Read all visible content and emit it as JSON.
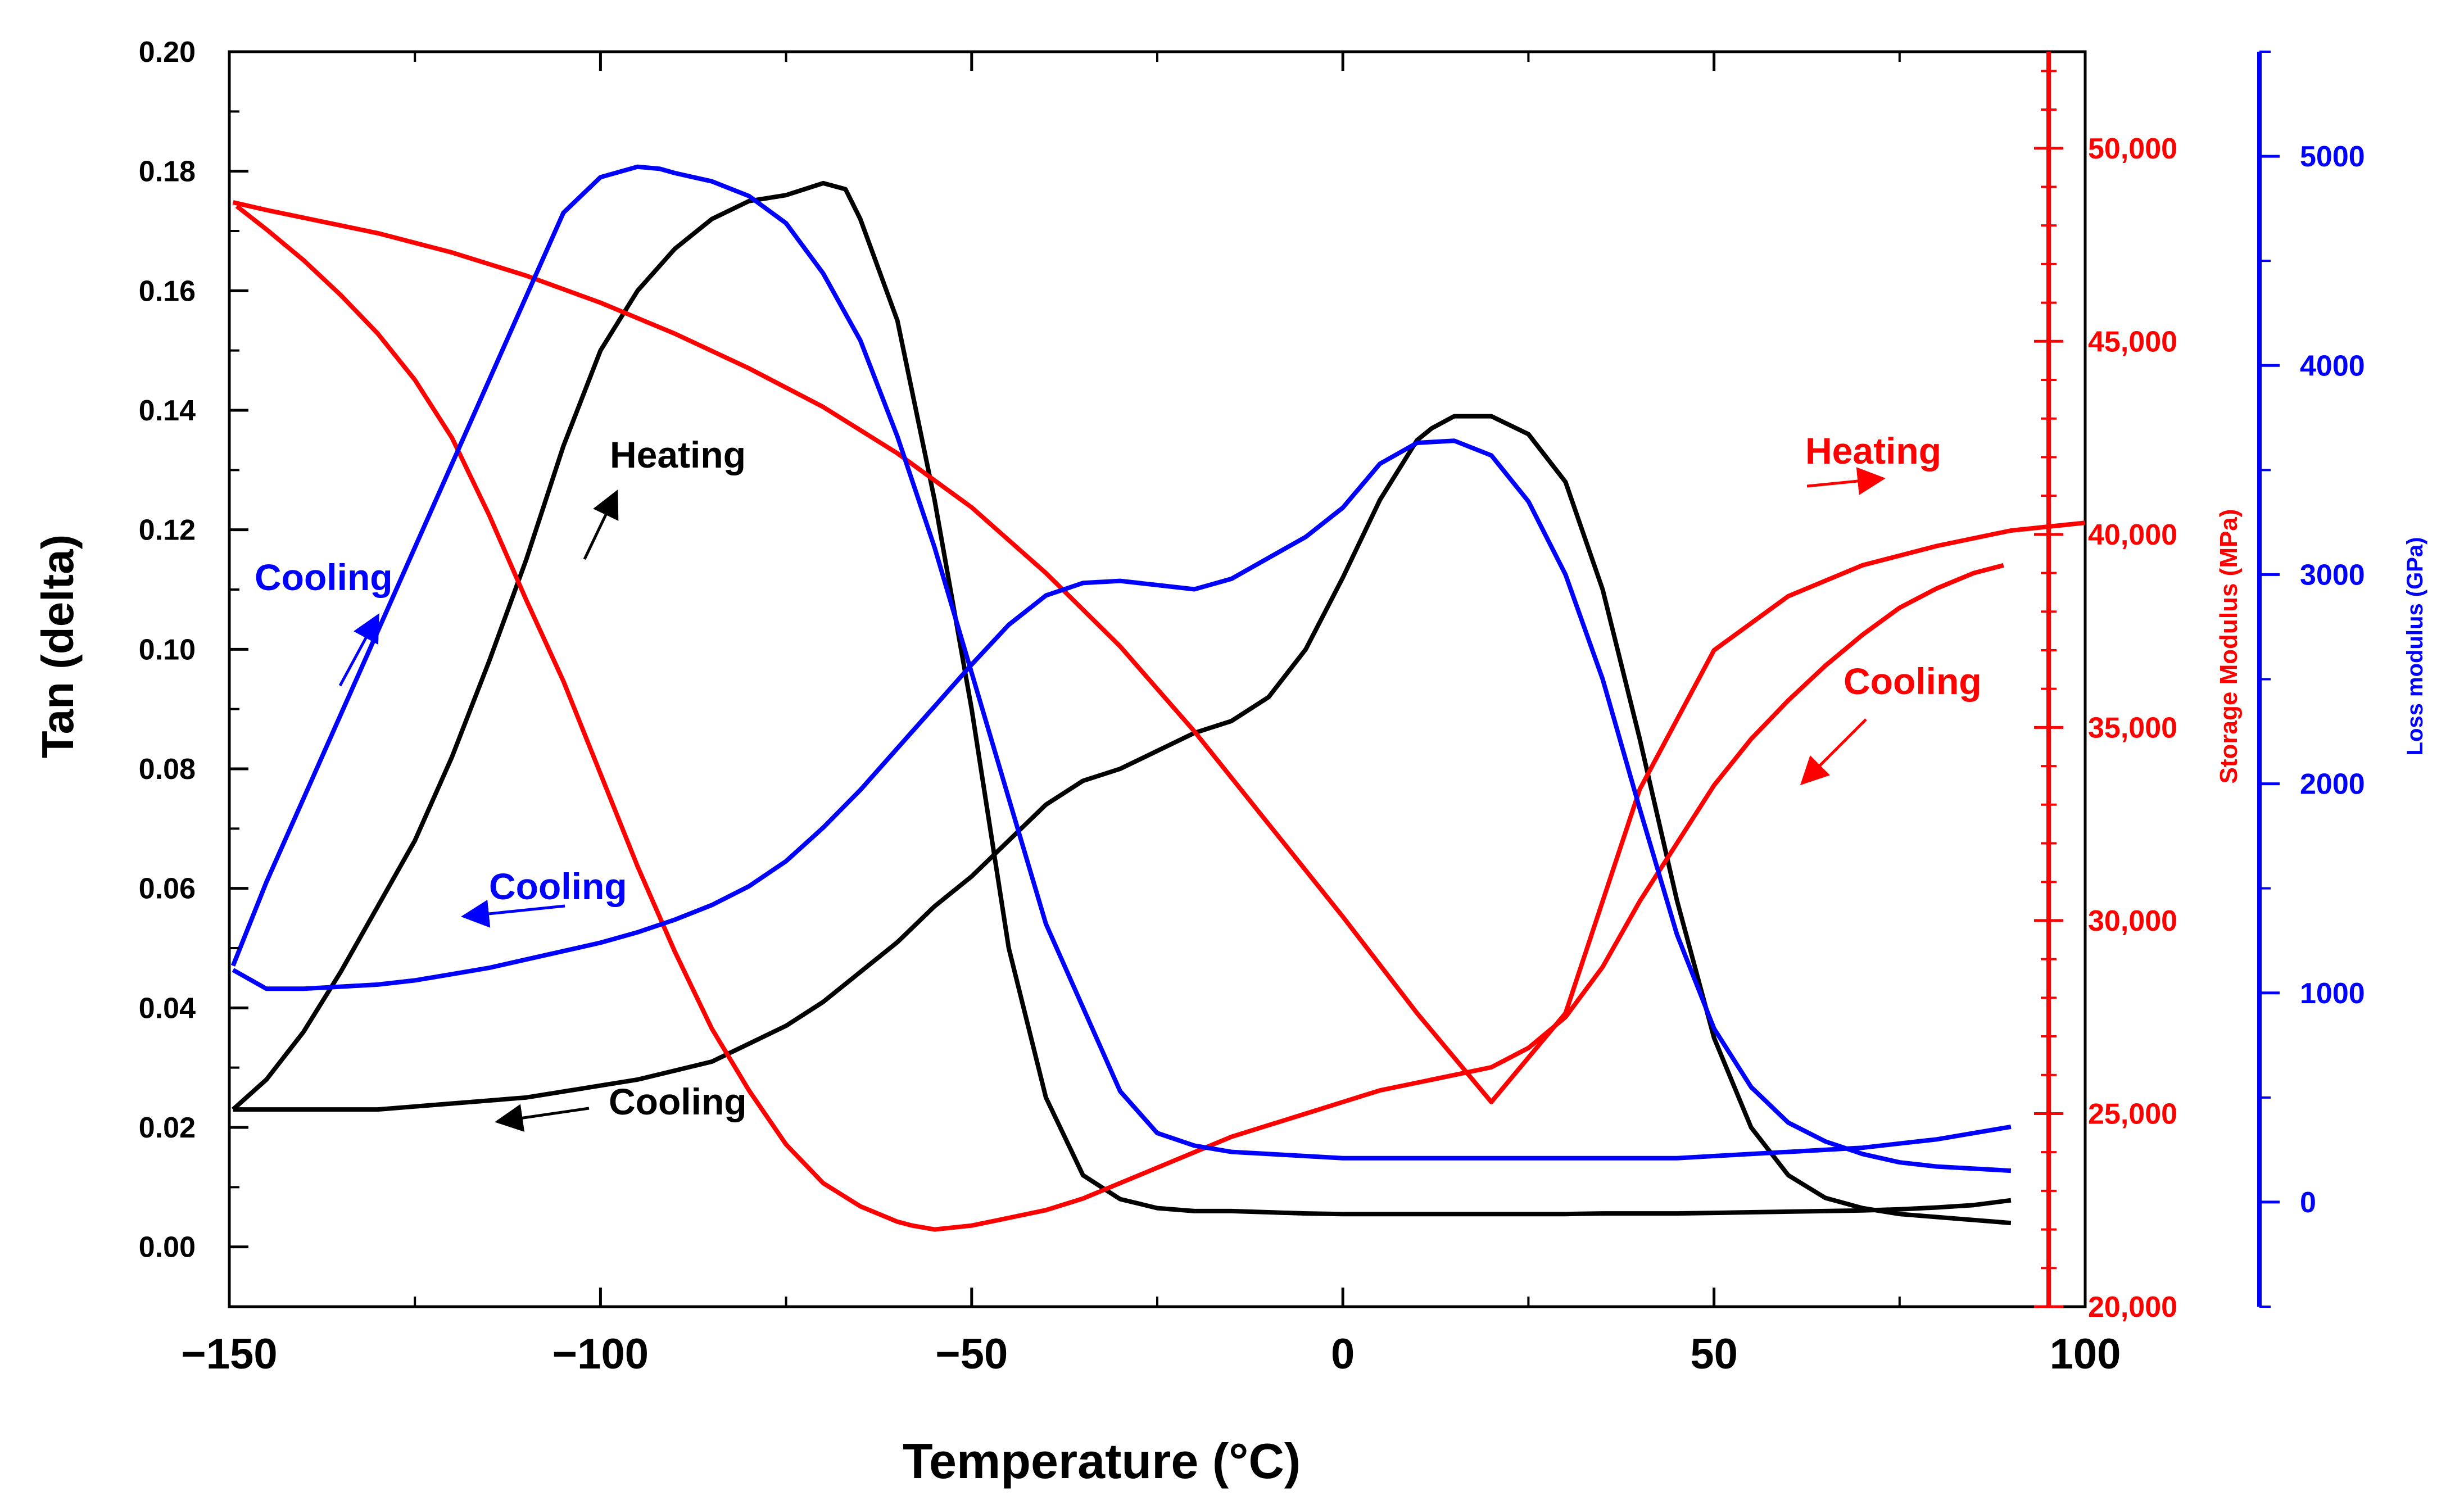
{
  "chart_data": {
    "type": "line",
    "xlabel": "Temperature (°C)",
    "ylabel_left": "Tan (delta)",
    "ylabel_right_1": "Storage Modulus (MPa)",
    "ylabel_right_2": "Loss modulus (GPa)",
    "xlim": [
      -150,
      100
    ],
    "ylim_left": [
      -0.01,
      0.2
    ],
    "ylim_right_1": [
      20000,
      52500
    ],
    "ylim_right_2": [
      -500,
      5500
    ],
    "x_ticks": [
      "−150",
      "−100",
      "−50",
      "0",
      "50",
      "100"
    ],
    "y_left_ticks": [
      "0.00",
      "0.02",
      "0.04",
      "0.06",
      "0.08",
      "0.10",
      "0.12",
      "0.14",
      "0.16",
      "0.18",
      "0.20"
    ],
    "y_right1_ticks": [
      "20,000",
      "25,000",
      "30,000",
      "35,000",
      "40,000",
      "45,000",
      "50,000"
    ],
    "y_right2_ticks": [
      "0",
      "1000",
      "2000",
      "3000",
      "4000",
      "5000"
    ],
    "grid": false,
    "colors": {
      "tan": "#000000",
      "storage": "#ff0000",
      "loss": "#0000ff"
    },
    "series": [
      {
        "axis": "left",
        "color": "#000000",
        "x": [
          -149.5,
          -145,
          -140,
          -135,
          -130,
          -125,
          -120,
          -115,
          -110,
          -105,
          -100,
          -95,
          -90,
          -85,
          -80,
          -75,
          -70,
          -67,
          -65,
          -60,
          -55,
          -50,
          -45,
          -40,
          -35,
          -30,
          -25,
          -20,
          -15,
          -10,
          -5,
          0,
          5,
          10,
          15,
          20,
          25,
          30,
          35,
          40,
          45,
          50,
          55,
          60,
          65,
          70,
          75,
          80,
          85,
          90
        ],
        "y": [
          0.023,
          0.028,
          0.036,
          0.046,
          0.057,
          0.068,
          0.082,
          0.098,
          0.115,
          0.134,
          0.15,
          0.16,
          0.167,
          0.172,
          0.175,
          0.176,
          0.178,
          0.177,
          0.172,
          0.155,
          0.125,
          0.09,
          0.05,
          0.025,
          0.012,
          0.008,
          0.0065,
          0.006,
          0.006,
          0.0058,
          0.0056,
          0.0055,
          0.0055,
          0.0055,
          0.0055,
          0.0055,
          0.0055,
          0.0055,
          0.0056,
          0.0056,
          0.0056,
          0.0057,
          0.0058,
          0.0059,
          0.006,
          0.0061,
          0.0063,
          0.0066,
          0.007,
          0.0078
        ]
      },
      {
        "axis": "left",
        "color": "#000000",
        "x": [
          90,
          85,
          80,
          75,
          70,
          65,
          60,
          55,
          50,
          45,
          40,
          35,
          30,
          25,
          20,
          15,
          12,
          10,
          5,
          0,
          -5,
          -10,
          -15,
          -20,
          -25,
          -30,
          -35,
          -40,
          -45,
          -50,
          -55,
          -60,
          -65,
          -70,
          -75,
          -80,
          -85,
          -90,
          -95,
          -100,
          -105,
          -110,
          -115,
          -120,
          -125,
          -130,
          -135,
          -140,
          -145,
          -149.5
        ],
        "y": [
          0.004,
          0.0045,
          0.005,
          0.0055,
          0.0065,
          0.0082,
          0.012,
          0.02,
          0.035,
          0.058,
          0.085,
          0.11,
          0.128,
          0.136,
          0.139,
          0.139,
          0.137,
          0.135,
          0.125,
          0.112,
          0.1,
          0.092,
          0.088,
          0.086,
          0.083,
          0.08,
          0.078,
          0.074,
          0.068,
          0.062,
          0.057,
          0.051,
          0.046,
          0.041,
          0.037,
          0.034,
          0.031,
          0.0295,
          0.028,
          0.027,
          0.026,
          0.025,
          0.0245,
          0.024,
          0.0235,
          0.023,
          0.023,
          0.023,
          0.023,
          0.023
        ]
      },
      {
        "axis": "right1",
        "color": "#ff0000",
        "x": [
          -149.5,
          -145,
          -140,
          -130,
          -120,
          -110,
          -100,
          -90,
          -80,
          -70,
          -60,
          -50,
          -40,
          -30,
          -20,
          -10,
          0,
          10,
          20,
          30,
          40,
          50,
          60,
          70,
          80,
          90,
          100
        ],
        "y": [
          48600,
          48400,
          48200,
          47800,
          47300,
          46700,
          46000,
          45200,
          44300,
          43300,
          42100,
          40700,
          39000,
          37100,
          34900,
          32500,
          30100,
          27600,
          25300,
          27600,
          33400,
          37000,
          38400,
          39200,
          39700,
          40100,
          40300
        ]
      },
      {
        "axis": "right1",
        "color": "#ff0000",
        "x": [
          89,
          85,
          80,
          75,
          70,
          65,
          60,
          55,
          50,
          45,
          40,
          35,
          30,
          25,
          20,
          15,
          10,
          5,
          0,
          -5,
          -10,
          -15,
          -20,
          -25,
          -30,
          -35,
          -40,
          -45,
          -50,
          -55,
          -58,
          -60,
          -65,
          -70,
          -75,
          -80,
          -85,
          -90,
          -95,
          -100,
          -105,
          -110,
          -115,
          -120,
          -125,
          -130,
          -135,
          -140,
          -145,
          -149
        ],
        "y": [
          39200,
          39000,
          38600,
          38100,
          37400,
          36600,
          35700,
          34700,
          33500,
          32000,
          30500,
          28800,
          27500,
          26700,
          26200,
          26000,
          25800,
          25600,
          25300,
          25000,
          24700,
          24400,
          24000,
          23600,
          23200,
          22800,
          22500,
          22300,
          22100,
          22000,
          22100,
          22200,
          22600,
          23200,
          24200,
          25600,
          27200,
          29200,
          31400,
          33800,
          36200,
          38300,
          40500,
          42500,
          44000,
          45200,
          46200,
          47100,
          47900,
          48500
        ]
      },
      {
        "axis": "right2",
        "color": "#0000ff",
        "x": [
          -149.5,
          -145,
          -140,
          -135,
          -130,
          -125,
          -120,
          -115,
          -110,
          -105,
          -100,
          -95,
          -92,
          -90,
          -85,
          -80,
          -75,
          -70,
          -65,
          -60,
          -55,
          -50,
          -45,
          -40,
          -35,
          -30,
          -25,
          -20,
          -15,
          -10,
          -5,
          0,
          5,
          10,
          15,
          20,
          25,
          30,
          35,
          40,
          45,
          50,
          55,
          60,
          65,
          70,
          75,
          80,
          85,
          90
        ],
        "y": [
          1130,
          1530,
          1930,
          2330,
          2730,
          3130,
          3530,
          3930,
          4330,
          4730,
          4900,
          4950,
          4940,
          4920,
          4880,
          4810,
          4680,
          4440,
          4120,
          3660,
          3130,
          2530,
          1930,
          1330,
          930,
          530,
          330,
          270,
          240,
          230,
          220,
          210,
          210,
          210,
          210,
          210,
          210,
          210,
          210,
          210,
          210,
          220,
          230,
          240,
          250,
          260,
          280,
          300,
          330,
          360
        ]
      },
      {
        "axis": "right2",
        "color": "#0000ff",
        "x": [
          90,
          85,
          80,
          75,
          70,
          65,
          60,
          55,
          50,
          45,
          40,
          35,
          30,
          25,
          20,
          15,
          10,
          5,
          0,
          -5,
          -10,
          -15,
          -20,
          -25,
          -30,
          -35,
          -40,
          -45,
          -50,
          -55,
          -60,
          -65,
          -70,
          -75,
          -80,
          -85,
          -90,
          -95,
          -100,
          -105,
          -110,
          -115,
          -120,
          -125,
          -130,
          -135,
          -140,
          -145,
          -149.5
        ],
        "y": [
          150,
          160,
          170,
          190,
          230,
          290,
          380,
          550,
          830,
          1280,
          1880,
          2500,
          3000,
          3350,
          3570,
          3640,
          3630,
          3530,
          3320,
          3180,
          3080,
          2980,
          2930,
          2950,
          2970,
          2960,
          2900,
          2760,
          2570,
          2370,
          2170,
          1970,
          1790,
          1630,
          1510,
          1420,
          1350,
          1290,
          1240,
          1200,
          1160,
          1120,
          1090,
          1060,
          1040,
          1030,
          1020,
          1020,
          1110
        ]
      }
    ]
  },
  "annotations": [
    {
      "text": "Heating",
      "color": "#000000"
    },
    {
      "text": "Cooling",
      "color": "#000000"
    },
    {
      "text": "Cooling",
      "color": "#0000ff"
    },
    {
      "text": "Cooling",
      "color": "#0000ff"
    },
    {
      "text": "Heating",
      "color": "#ff0000"
    },
    {
      "text": "Cooling",
      "color": "#ff0000"
    }
  ]
}
